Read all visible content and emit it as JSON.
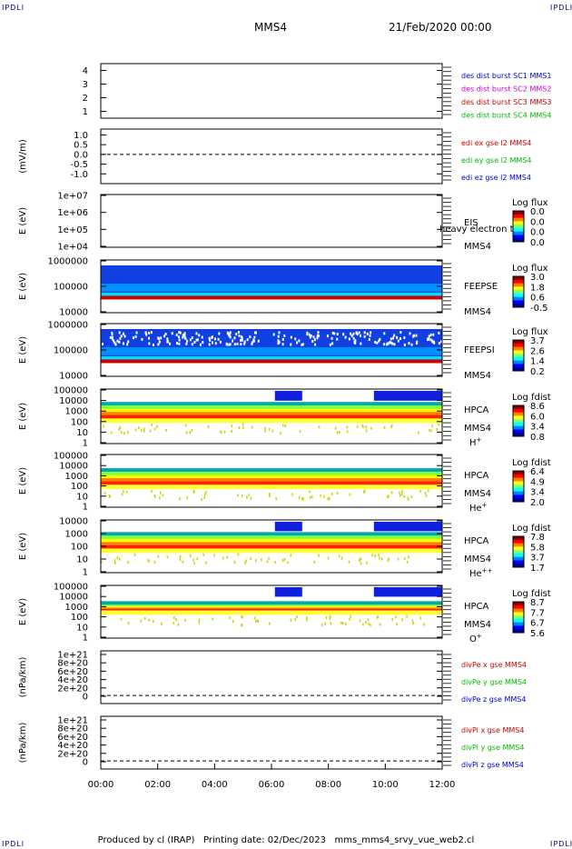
{
  "corners": {
    "tl": "IPDLI",
    "tr": "IPDLI",
    "bl": "IPDLI",
    "br": "IPDLI"
  },
  "header": {
    "spacecraft": "MMS4",
    "date": "21/Feb/2020 00:00"
  },
  "footer": {
    "text": "Produced by cl (IRAP)   Printing date: 02/Dec/2023   mms_mms4_srvy_vue_web2.cl"
  },
  "xaxis": {
    "ticks": [
      "00:00",
      "02:00",
      "04:00",
      "06:00",
      "08:00",
      "10:00",
      "12:00"
    ]
  },
  "colors": {
    "blue": "#0000cc",
    "magenta": "#d000d0",
    "red": "#cc0000",
    "green": "#00bb00"
  },
  "chart_data": [
    {
      "type": "line",
      "ylim": [
        0.5,
        4.5
      ],
      "yticks": [
        "1",
        "2",
        "3",
        "4"
      ],
      "ylabel": "",
      "legend": [
        {
          "text": "des dist burst SC1 MMS1",
          "color": "#0000cc"
        },
        {
          "text": "des dist burst SC2 MMS2",
          "color": "#d000d0"
        },
        {
          "text": "des dist burst SC3 MMS3",
          "color": "#cc0000"
        },
        {
          "text": "des dist burst SC4 MMS4",
          "color": "#00bb00"
        }
      ]
    },
    {
      "type": "line",
      "ylim": [
        -1.5,
        1.3
      ],
      "yticks": [
        "1.0",
        "0.5",
        "0.0",
        "-0.5",
        "-1.0"
      ],
      "ylabel": "(mV/m)",
      "dashed_zero": true,
      "legend": [
        {
          "text": "edi ex gse l2 MMS4",
          "color": "#cc0000"
        },
        {
          "text": "edi ey gse l2 MMS4",
          "color": "#00bb00"
        },
        {
          "text": "edi ez gse l2 MMS4",
          "color": "#0000cc"
        }
      ]
    },
    {
      "type": "heatmap",
      "yticks": [
        "1e+07",
        "1e+06",
        "1e+05",
        "1e+04"
      ],
      "ylabel": "E (eV)",
      "labels": [
        "EIS",
        "MMS4"
      ],
      "overlay": "heavy electron tof",
      "cbar_title": "Log flux",
      "cbar_ticks": [
        "0.0",
        "0.0",
        "0.0",
        "0.0"
      ]
    },
    {
      "type": "heatmap",
      "yticks": [
        "1000000",
        "100000",
        "10000"
      ],
      "ylabel": "E (eV)",
      "labels": [
        "FEEPSE",
        "MMS4"
      ],
      "cbar_title": "Log flux",
      "cbar_ticks": [
        "3.0",
        "1.8",
        "0.6",
        "-0.5"
      ]
    },
    {
      "type": "heatmap",
      "yticks": [
        "1000000",
        "100000",
        "10000"
      ],
      "ylabel": "E (eV)",
      "labels": [
        "FEEPSI",
        "MMS4"
      ],
      "cbar_title": "Log flux",
      "cbar_ticks": [
        "3.7",
        "2.6",
        "1.4",
        "0.2"
      ]
    },
    {
      "type": "heatmap",
      "yticks": [
        "100000",
        "10000",
        "1000",
        "100",
        "10",
        "1"
      ],
      "ylabel": "E (eV)",
      "labels": [
        "HPCA",
        "MMS4"
      ],
      "ion": "H",
      "ion_sup": "+",
      "cbar_title": "Log fdist",
      "cbar_ticks": [
        "8.6",
        "6.0",
        "3.4",
        "0.8"
      ]
    },
    {
      "type": "heatmap",
      "yticks": [
        "100000",
        "10000",
        "1000",
        "100",
        "10",
        "1"
      ],
      "ylabel": "E (eV)",
      "labels": [
        "HPCA",
        "MMS4"
      ],
      "ion": "He",
      "ion_sup": "+",
      "cbar_title": "Log fdist",
      "cbar_ticks": [
        "6.4",
        "4.9",
        "3.4",
        "2.0"
      ]
    },
    {
      "type": "heatmap",
      "yticks": [
        "10000",
        "1000",
        "100",
        "10",
        "1"
      ],
      "ylabel": "E (eV)",
      "labels": [
        "HPCA",
        "MMS4"
      ],
      "ion": "He",
      "ion_sup": "++",
      "cbar_title": "Log fdist",
      "cbar_ticks": [
        "7.8",
        "5.8",
        "3.7",
        "1.7"
      ]
    },
    {
      "type": "heatmap",
      "yticks": [
        "100000",
        "10000",
        "1000",
        "100",
        "10",
        "1"
      ],
      "ylabel": "E (eV)",
      "labels": [
        "HPCA",
        "MMS4"
      ],
      "ion": "O",
      "ion_sup": "+",
      "cbar_title": "Log fdist",
      "cbar_ticks": [
        "8.7",
        "7.7",
        "6.7",
        "5.6"
      ]
    },
    {
      "type": "line",
      "ylim": [
        -0.2,
        1.1
      ],
      "yticks": [
        "1e+21",
        "8e+20",
        "6e+20",
        "4e+20",
        "2e+20",
        "0"
      ],
      "ylabel": "(nPa/km)",
      "dashed_zero": true,
      "legend": [
        {
          "text": "divPe x gse MMS4",
          "color": "#cc0000"
        },
        {
          "text": "divPe y gse MMS4",
          "color": "#00bb00"
        },
        {
          "text": "divPe z gse MMS4",
          "color": "#0000cc"
        }
      ]
    },
    {
      "type": "line",
      "ylim": [
        -0.2,
        1.1
      ],
      "yticks": [
        "1e+21",
        "8e+20",
        "6e+20",
        "4e+20",
        "2e+20",
        "0"
      ],
      "ylabel": "(nPa/km)",
      "dashed_zero": true,
      "legend": [
        {
          "text": "divPi x gse MMS4",
          "color": "#cc0000"
        },
        {
          "text": "divPi y gse MMS4",
          "color": "#00bb00"
        },
        {
          "text": "divPi z gse MMS4",
          "color": "#0000cc"
        }
      ]
    }
  ]
}
